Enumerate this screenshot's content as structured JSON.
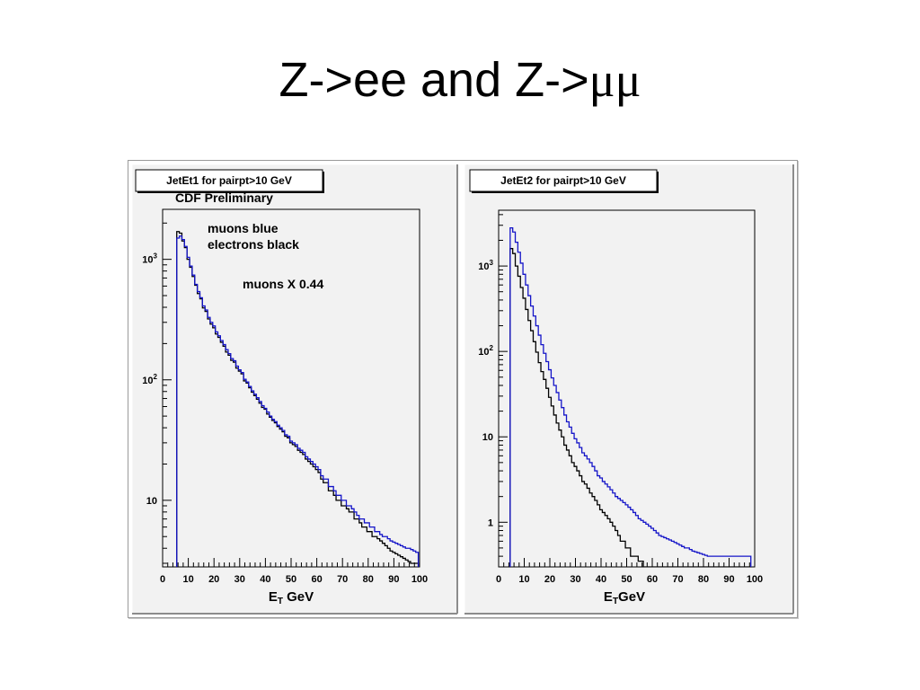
{
  "slide": {
    "title_prefix": "Z->ee and Z->",
    "title_greek": "μμ"
  },
  "colors": {
    "muon_series": "#1414c8",
    "electron_series": "#000000",
    "pad_background": "#f2f2f2"
  },
  "chart_data": [
    {
      "type": "line",
      "step": true,
      "title": "JetEt1 for pairpt>10 GeV",
      "subtitle": "CDF Preliminary",
      "xlabel_main": "E",
      "xlabel_sub": "T",
      "xlabel_unit": "GeV",
      "ylabel": "",
      "log_y": true,
      "xlim": [
        0,
        100
      ],
      "ylim": [
        2.8,
        2600
      ],
      "x_ticks": [
        "0",
        "10",
        "20",
        "30",
        "40",
        "50",
        "60",
        "70",
        "80",
        "90",
        "100"
      ],
      "y_ticks": [
        {
          "value": 10,
          "base": "10",
          "exp": ""
        },
        {
          "value": 100,
          "base": "10",
          "exp": "2"
        },
        {
          "value": 1000,
          "base": "10",
          "exp": "3"
        }
      ],
      "annotations": [
        "muons blue",
        "electrons black",
        "muons X 0.44"
      ],
      "x": [
        6,
        7,
        8,
        9,
        10,
        11,
        12,
        13,
        14,
        15,
        16,
        17,
        18,
        19,
        20,
        21,
        22,
        23,
        24,
        25,
        26,
        27,
        28,
        29,
        30,
        31,
        32,
        33,
        34,
        35,
        36,
        37,
        38,
        39,
        40,
        41,
        42,
        43,
        44,
        45,
        46,
        47,
        48,
        49,
        50,
        51,
        52,
        53,
        54,
        55,
        56,
        57,
        58,
        59,
        60,
        61,
        62,
        63,
        64,
        65,
        66,
        67,
        68,
        69,
        70,
        71,
        72,
        73,
        74,
        75,
        76,
        77,
        78,
        79,
        80,
        81,
        82,
        83,
        84,
        85,
        86,
        87,
        88,
        89,
        90,
        91,
        92,
        93,
        94,
        95,
        96,
        97,
        98,
        99
      ],
      "series": [
        {
          "name": "electrons black",
          "color": "#000000",
          "values": [
            1700,
            1650,
            1420,
            1250,
            1000,
            860,
            720,
            610,
            520,
            470,
            395,
            370,
            320,
            290,
            270,
            240,
            225,
            205,
            190,
            170,
            160,
            145,
            140,
            125,
            118,
            112,
            98,
            94,
            86,
            79,
            74,
            69,
            64,
            59,
            57,
            52,
            49,
            46,
            44,
            41,
            39,
            37,
            34,
            33,
            30,
            29,
            28,
            26,
            25,
            24,
            22,
            21,
            20,
            19,
            18,
            17,
            15,
            14,
            14,
            12,
            12,
            11,
            10,
            10,
            9,
            9,
            8.5,
            8,
            8,
            7,
            7,
            6.5,
            6,
            6,
            5.5,
            5.5,
            5,
            5,
            4.8,
            4.6,
            4.4,
            4.2,
            4,
            3.8,
            3.7,
            3.6,
            3.5,
            3.4,
            3.3,
            3.2,
            3.1,
            3,
            3,
            3
          ]
        },
        {
          "name": "muons blue",
          "color": "#1414c8",
          "values": [
            1500,
            1560,
            1460,
            1280,
            1040,
            880,
            740,
            620,
            540,
            480,
            410,
            380,
            330,
            300,
            280,
            250,
            232,
            212,
            196,
            178,
            165,
            150,
            144,
            130,
            121,
            115,
            101,
            96,
            88,
            81,
            76,
            71,
            66,
            61,
            58,
            54,
            50,
            47,
            45,
            42,
            40,
            38,
            35,
            34,
            31,
            30,
            29,
            27,
            26,
            25,
            23,
            22,
            21,
            20,
            19,
            18,
            16,
            15,
            15,
            13,
            13,
            12,
            11,
            11,
            10,
            10,
            9,
            9,
            8.5,
            8,
            7.5,
            7,
            7,
            6.5,
            6.5,
            6,
            6,
            5.5,
            5.5,
            5.2,
            5,
            5,
            4.8,
            4.6,
            4.5,
            4.4,
            4.3,
            4.2,
            4.1,
            4,
            4,
            3.9,
            3.8,
            3.7
          ]
        }
      ]
    },
    {
      "type": "line",
      "step": true,
      "title": "JetEt2 for pairpt>10 GeV",
      "subtitle": "",
      "xlabel_main": "E",
      "xlabel_sub": "T",
      "xlabel_unit": "GeV",
      "ylabel": "",
      "log_y": true,
      "xlim": [
        0,
        100
      ],
      "ylim": [
        0.3,
        4500
      ],
      "x_ticks": [
        "0",
        "10",
        "20",
        "30",
        "40",
        "50",
        "60",
        "70",
        "80",
        "90",
        "100"
      ],
      "y_ticks": [
        {
          "value": 1,
          "base": "1",
          "exp": ""
        },
        {
          "value": 10,
          "base": "10",
          "exp": ""
        },
        {
          "value": 100,
          "base": "10",
          "exp": "2"
        },
        {
          "value": 1000,
          "base": "10",
          "exp": "3"
        }
      ],
      "annotations": [],
      "x": [
        5,
        6,
        7,
        8,
        9,
        10,
        11,
        12,
        13,
        14,
        15,
        16,
        17,
        18,
        19,
        20,
        21,
        22,
        23,
        24,
        25,
        26,
        27,
        28,
        29,
        30,
        31,
        32,
        33,
        34,
        35,
        36,
        37,
        38,
        39,
        40,
        41,
        42,
        43,
        44,
        45,
        46,
        47,
        48,
        49,
        50,
        51,
        52,
        53,
        54,
        55,
        56,
        57,
        58,
        59,
        60,
        61,
        62,
        63,
        64,
        65,
        66,
        67,
        68,
        69,
        70,
        71,
        72,
        73,
        74,
        75,
        76,
        77,
        78,
        79,
        80,
        81,
        82,
        83,
        84,
        85,
        86,
        87,
        88,
        89,
        90,
        91,
        92,
        93,
        94,
        95,
        96,
        97,
        98
      ],
      "series": [
        {
          "name": "electrons black",
          "color": "#000000",
          "values": [
            1600,
            1400,
            1000,
            760,
            560,
            420,
            310,
            230,
            175,
            130,
            98,
            74,
            58,
            47,
            37,
            29,
            23,
            18,
            14.5,
            12,
            10,
            8,
            7,
            6,
            5,
            4.5,
            4,
            3.5,
            3,
            2.8,
            2.5,
            2.2,
            2,
            1.8,
            1.6,
            1.4,
            1.3,
            1.2,
            1.1,
            1,
            0.9,
            0.8,
            0.7,
            0.6,
            0.6,
            0.5,
            0.5,
            0.4,
            0.4,
            0.4,
            0.35,
            0.35,
            0.3,
            0.3,
            0.3,
            0.3,
            0.3,
            0.3,
            0.3,
            0.3,
            0.3,
            0.3,
            0.3,
            0.3,
            0.3,
            0.3,
            0.3,
            0.3,
            0.3,
            0.3,
            0.3,
            0.3,
            0.3,
            0.3,
            0.3,
            0.3,
            0.3,
            0.3,
            0.3,
            0.3,
            0.3,
            0.3,
            0.3,
            0.3,
            0.3,
            0.3,
            0.3,
            0.3,
            0.3,
            0.3,
            0.3,
            0.3,
            0.3,
            0.3
          ]
        },
        {
          "name": "muons blue",
          "color": "#1414c8",
          "values": [
            2800,
            2500,
            1900,
            1450,
            1080,
            800,
            600,
            450,
            340,
            260,
            200,
            155,
            120,
            95,
            76,
            61,
            49,
            40,
            33,
            27,
            22,
            18,
            15,
            13,
            11,
            9.5,
            8.5,
            7.5,
            6.5,
            6,
            5.5,
            5,
            4.5,
            4,
            3.5,
            3.3,
            3,
            2.8,
            2.6,
            2.4,
            2.2,
            2,
            1.9,
            1.8,
            1.7,
            1.6,
            1.5,
            1.4,
            1.3,
            1.2,
            1.1,
            1.05,
            1,
            0.95,
            0.9,
            0.85,
            0.8,
            0.75,
            0.7,
            0.68,
            0.66,
            0.64,
            0.62,
            0.6,
            0.58,
            0.56,
            0.54,
            0.52,
            0.5,
            0.5,
            0.48,
            0.46,
            0.45,
            0.44,
            0.43,
            0.42,
            0.41,
            0.4,
            0.4,
            0.4,
            0.4,
            0.4,
            0.4,
            0.4,
            0.4,
            0.4,
            0.4,
            0.4,
            0.4,
            0.4,
            0.4,
            0.4,
            0.4,
            0.4
          ]
        }
      ]
    }
  ]
}
